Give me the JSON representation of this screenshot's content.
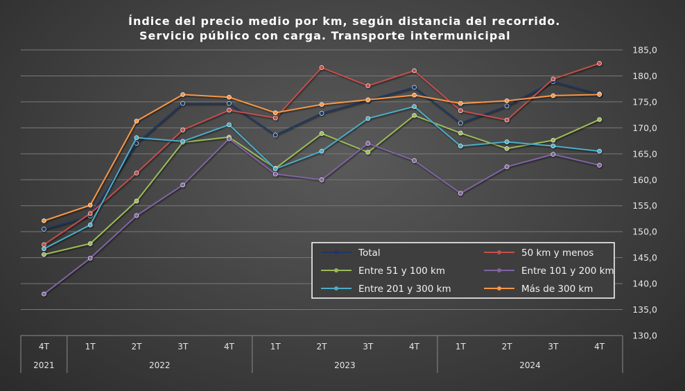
{
  "chart_data": {
    "type": "line",
    "title_lines": [
      "Índice del precio medio por km, según distancia del recorrido.",
      "Servicio público con carga. Transporte intermunicipal"
    ],
    "categories": [
      "4T",
      "1T",
      "2T",
      "3T",
      "4T",
      "1T",
      "2T",
      "3T",
      "4T",
      "1T",
      "2T",
      "3T",
      "4T"
    ],
    "year_groups": [
      {
        "label": "2021",
        "count": 1
      },
      {
        "label": "2022",
        "count": 4
      },
      {
        "label": "2023",
        "count": 4
      },
      {
        "label": "2024",
        "count": 4
      }
    ],
    "y_axis": {
      "min": 130,
      "max": 185,
      "step": 5,
      "tick_labels": [
        "130,0",
        "135,0",
        "140,0",
        "145,0",
        "150,0",
        "155,0",
        "160,0",
        "165,0",
        "170,0",
        "175,0",
        "180,0",
        "185,0"
      ]
    },
    "grid": true,
    "legend_position": "bottom-right",
    "series": [
      {
        "name": "Total",
        "color": "#1f3864",
        "values": [
          150.5,
          153.0,
          167.0,
          174.7,
          174.7,
          168.6,
          172.8,
          175.3,
          177.8,
          170.9,
          174.2,
          178.9,
          176.5
        ]
      },
      {
        "name": "50 km y menos",
        "color": "#c0504d",
        "values": [
          147.5,
          153.5,
          161.3,
          169.6,
          173.4,
          171.9,
          181.6,
          178.1,
          181.0,
          173.3,
          171.5,
          179.4,
          182.4
        ]
      },
      {
        "name": "Entre 51 y 100 km",
        "color": "#9bbb59",
        "values": [
          145.6,
          147.7,
          155.9,
          167.2,
          168.2,
          162.2,
          168.9,
          165.3,
          172.4,
          169.0,
          166.0,
          167.6,
          171.6
        ]
      },
      {
        "name": "Entre 101 y 200 km",
        "color": "#8064a2",
        "values": [
          138.0,
          144.9,
          153.1,
          159.0,
          167.9,
          161.1,
          160.0,
          167.0,
          163.7,
          157.4,
          162.5,
          164.9,
          162.8
        ]
      },
      {
        "name": "Entre 201 y 300 km",
        "color": "#4bacc6",
        "values": [
          146.7,
          151.3,
          168.1,
          167.4,
          170.6,
          162.1,
          165.5,
          171.8,
          174.1,
          166.5,
          167.3,
          166.5,
          165.5
        ]
      },
      {
        "name": "Más de 300 km",
        "color": "#f79646",
        "values": [
          152.1,
          155.1,
          171.3,
          176.4,
          175.9,
          172.9,
          174.5,
          175.4,
          176.3,
          174.7,
          175.2,
          176.2,
          176.4
        ]
      }
    ]
  }
}
